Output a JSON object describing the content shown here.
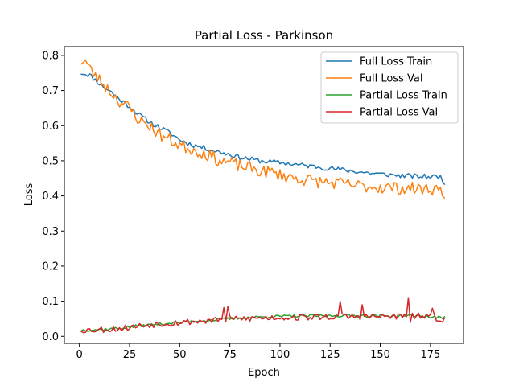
{
  "chart_data": {
    "type": "line",
    "title": "Partial Loss - Parkinson",
    "xlabel": "Epoch",
    "ylabel": "Loss",
    "xlim": [
      -7.5,
      191.5
    ],
    "ylim": [
      -0.02,
      0.825
    ],
    "xticks": [
      0,
      25,
      50,
      75,
      100,
      125,
      150,
      175
    ],
    "yticks": [
      0.0,
      0.1,
      0.2,
      0.3,
      0.4,
      0.5,
      0.6,
      0.7,
      0.8
    ],
    "ytick_labels": [
      "0.0",
      "0.1",
      "0.2",
      "0.3",
      "0.4",
      "0.5",
      "0.6",
      "0.7",
      "0.8"
    ],
    "legend_position": "top-right",
    "grid": false,
    "x_start": 1,
    "x_step": 1,
    "series": [
      {
        "name": "Full Loss Train",
        "color": "#1f77b4",
        "anchors": [
          [
            1,
            0.75
          ],
          [
            5,
            0.745
          ],
          [
            10,
            0.72
          ],
          [
            15,
            0.7
          ],
          [
            20,
            0.675
          ],
          [
            25,
            0.655
          ],
          [
            30,
            0.63
          ],
          [
            35,
            0.61
          ],
          [
            40,
            0.595
          ],
          [
            45,
            0.58
          ],
          [
            50,
            0.56
          ],
          [
            55,
            0.548
          ],
          [
            60,
            0.54
          ],
          [
            65,
            0.532
          ],
          [
            70,
            0.525
          ],
          [
            75,
            0.518
          ],
          [
            80,
            0.51
          ],
          [
            85,
            0.505
          ],
          [
            90,
            0.5
          ],
          [
            95,
            0.497
          ],
          [
            100,
            0.495
          ],
          [
            110,
            0.488
          ],
          [
            120,
            0.482
          ],
          [
            130,
            0.475
          ],
          [
            140,
            0.468
          ],
          [
            150,
            0.462
          ],
          [
            160,
            0.458
          ],
          [
            170,
            0.455
          ],
          [
            178,
            0.455
          ],
          [
            180,
            0.455
          ],
          [
            182,
            0.44
          ]
        ],
        "noise": 0.007,
        "seed": 11
      },
      {
        "name": "Full Loss Val",
        "color": "#ff7f0e",
        "anchors": [
          [
            1,
            0.785
          ],
          [
            3,
            0.785
          ],
          [
            6,
            0.755
          ],
          [
            10,
            0.73
          ],
          [
            15,
            0.7
          ],
          [
            20,
            0.67
          ],
          [
            25,
            0.65
          ],
          [
            30,
            0.615
          ],
          [
            35,
            0.6
          ],
          [
            40,
            0.575
          ],
          [
            45,
            0.56
          ],
          [
            50,
            0.545
          ],
          [
            55,
            0.535
          ],
          [
            60,
            0.525
          ],
          [
            65,
            0.515
          ],
          [
            70,
            0.5
          ],
          [
            75,
            0.495
          ],
          [
            80,
            0.485
          ],
          [
            85,
            0.48
          ],
          [
            90,
            0.47
          ],
          [
            95,
            0.468
          ],
          [
            100,
            0.46
          ],
          [
            110,
            0.448
          ],
          [
            120,
            0.44
          ],
          [
            130,
            0.435
          ],
          [
            140,
            0.428
          ],
          [
            150,
            0.425
          ],
          [
            160,
            0.422
          ],
          [
            170,
            0.42
          ],
          [
            178,
            0.42
          ],
          [
            182,
            0.41
          ]
        ],
        "noise": 0.018,
        "seed": 23
      },
      {
        "name": "Partial Loss Train",
        "color": "#2ca02c",
        "anchors": [
          [
            1,
            0.018
          ],
          [
            10,
            0.019
          ],
          [
            20,
            0.023
          ],
          [
            30,
            0.03
          ],
          [
            40,
            0.035
          ],
          [
            50,
            0.04
          ],
          [
            60,
            0.044
          ],
          [
            70,
            0.048
          ],
          [
            80,
            0.052
          ],
          [
            90,
            0.055
          ],
          [
            100,
            0.057
          ],
          [
            110,
            0.058
          ],
          [
            120,
            0.058
          ],
          [
            130,
            0.059
          ],
          [
            140,
            0.059
          ],
          [
            150,
            0.058
          ],
          [
            160,
            0.058
          ],
          [
            170,
            0.058
          ],
          [
            182,
            0.052
          ]
        ],
        "noise": 0.004,
        "seed": 37
      },
      {
        "name": "Partial Loss Val",
        "color": "#d62728",
        "anchors": [
          [
            1,
            0.018
          ],
          [
            10,
            0.019
          ],
          [
            20,
            0.022
          ],
          [
            30,
            0.03
          ],
          [
            40,
            0.036
          ],
          [
            50,
            0.04
          ],
          [
            60,
            0.043
          ],
          [
            70,
            0.047
          ],
          [
            80,
            0.05
          ],
          [
            90,
            0.052
          ],
          [
            100,
            0.054
          ],
          [
            110,
            0.054
          ],
          [
            120,
            0.055
          ],
          [
            130,
            0.056
          ],
          [
            140,
            0.056
          ],
          [
            150,
            0.056
          ],
          [
            160,
            0.057
          ],
          [
            170,
            0.058
          ],
          [
            182,
            0.048
          ]
        ],
        "noise": 0.009,
        "seed": 53,
        "spikes": [
          [
            72,
            0.082
          ],
          [
            74,
            0.085
          ],
          [
            130,
            0.1
          ],
          [
            141,
            0.09
          ],
          [
            164,
            0.11
          ],
          [
            165,
            0.04
          ],
          [
            176,
            0.08
          ]
        ]
      }
    ]
  }
}
